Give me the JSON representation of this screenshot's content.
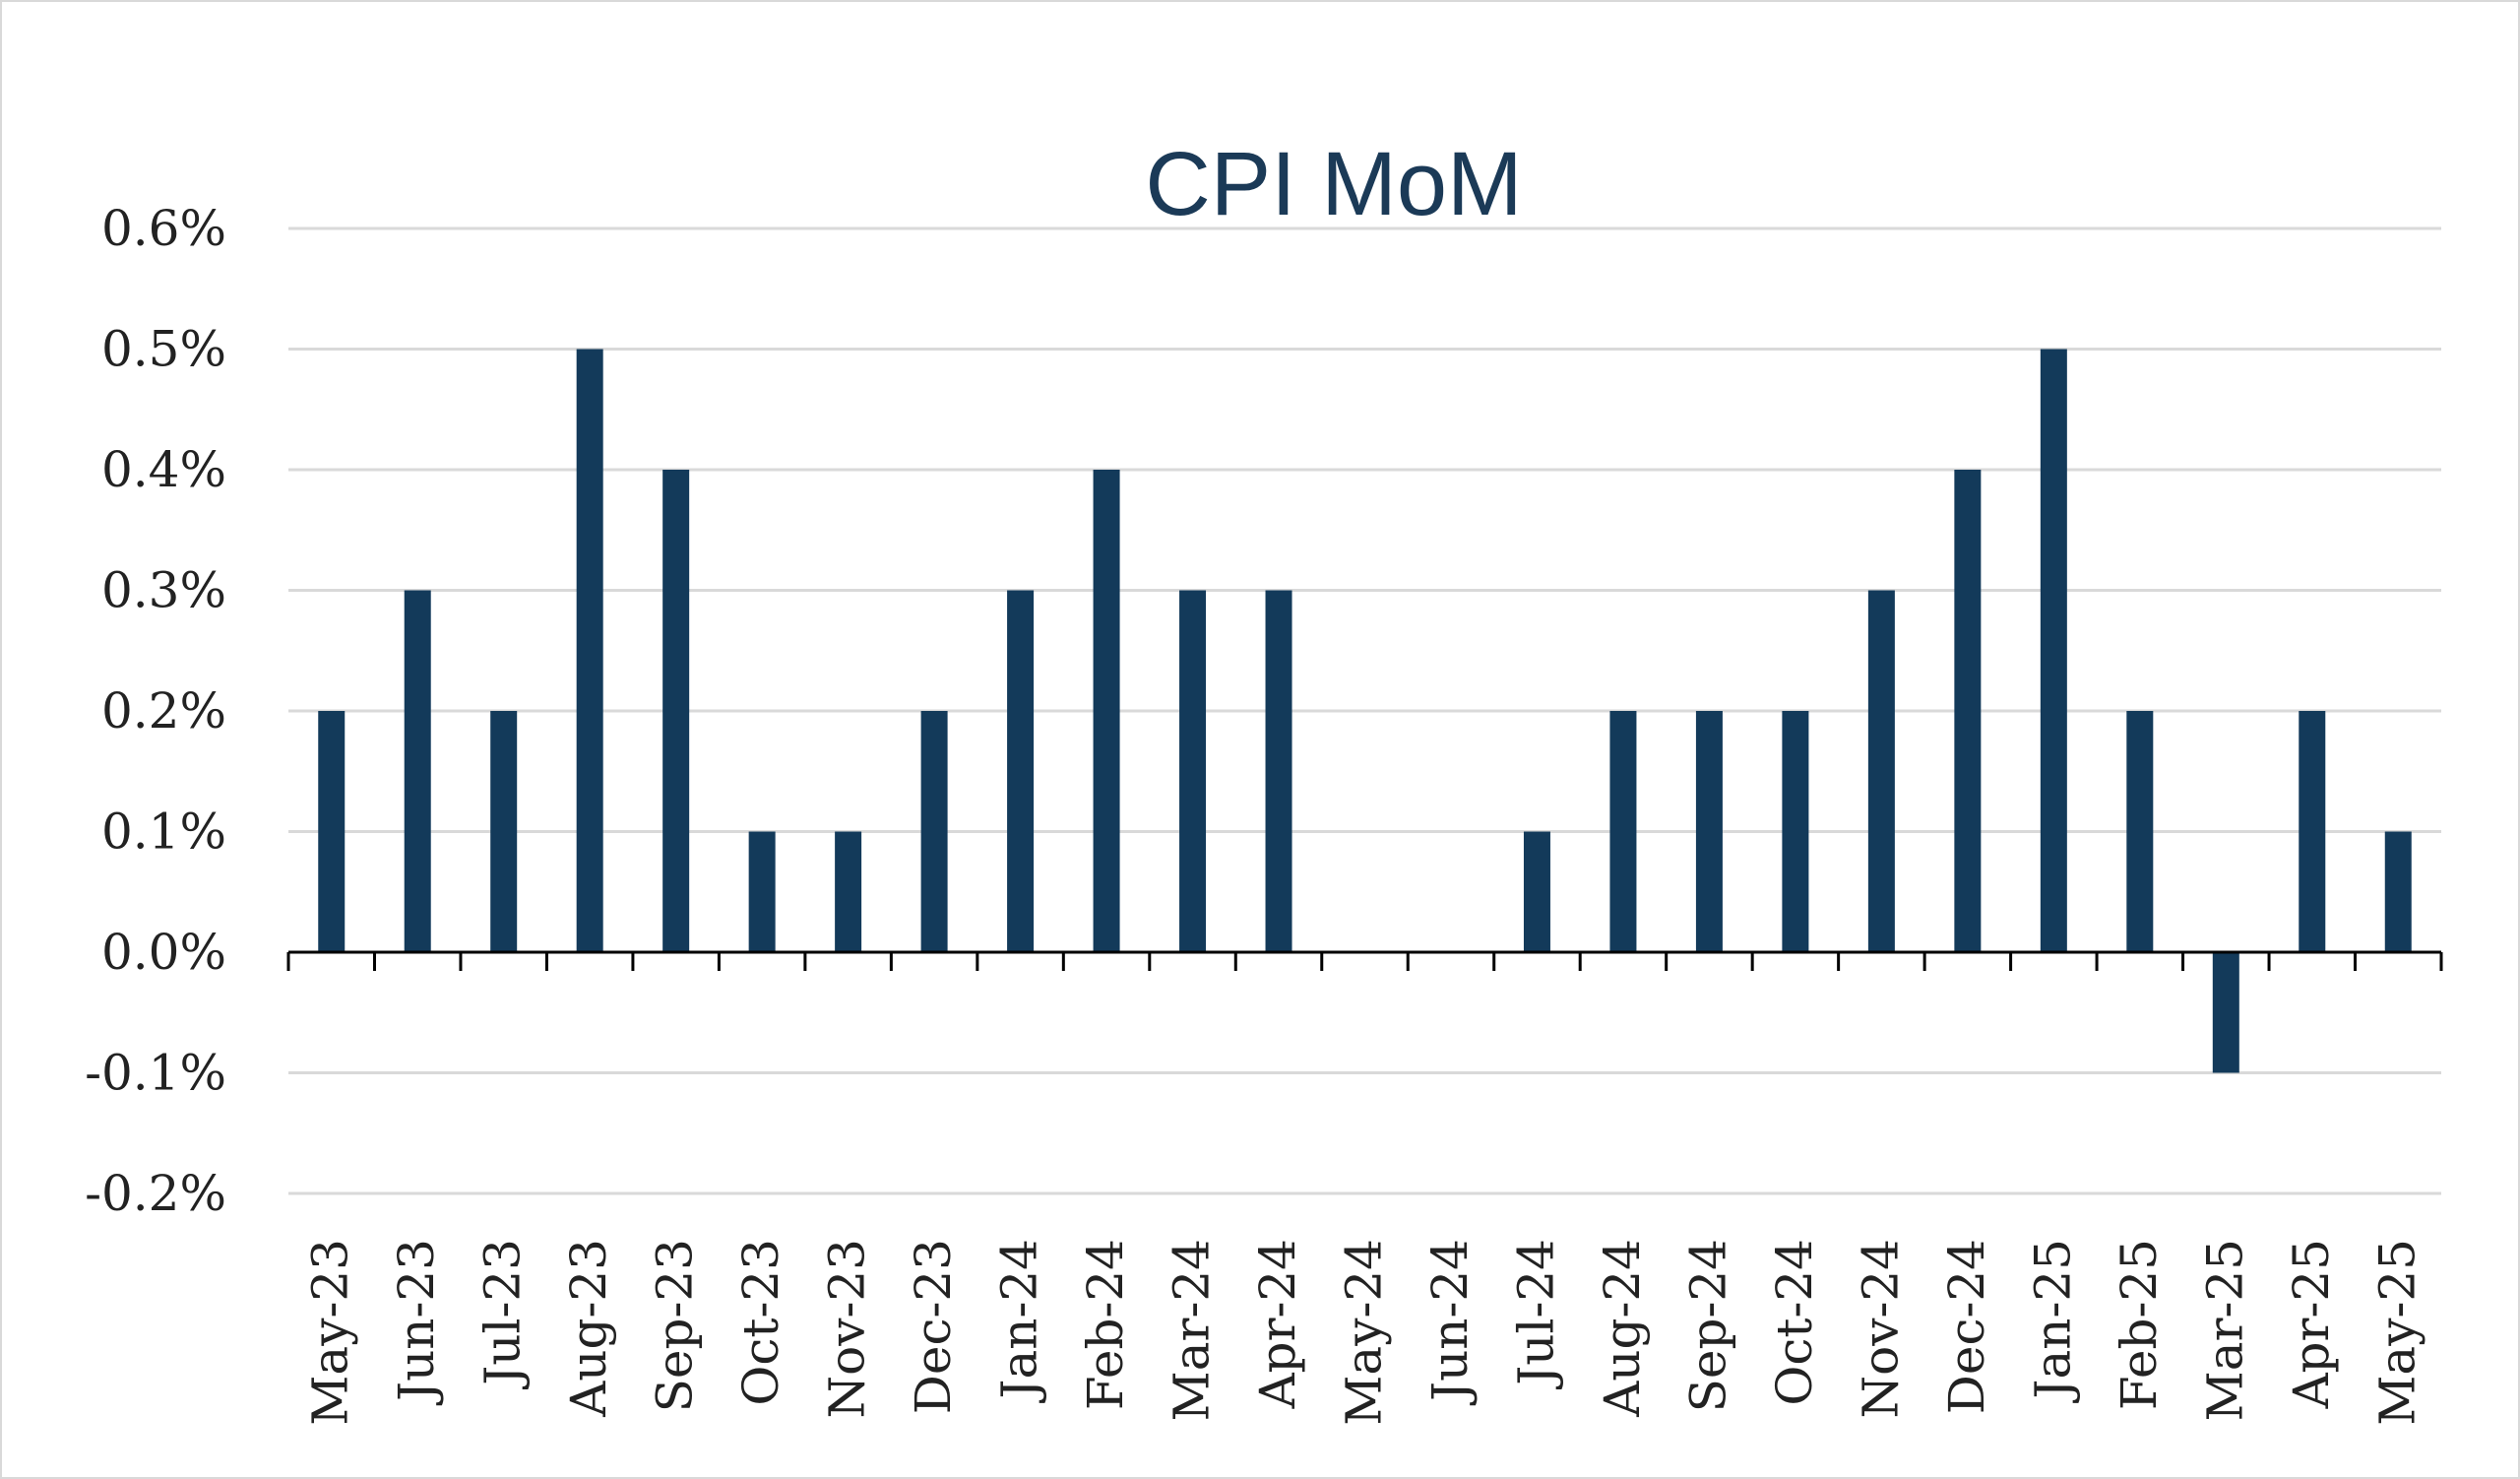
{
  "chart_data": {
    "type": "bar",
    "title": "CPI MoM",
    "xlabel": "",
    "ylabel": "",
    "categories": [
      "May-23",
      "Jun-23",
      "Jul-23",
      "Aug-23",
      "Sep-23",
      "Oct-23",
      "Nov-23",
      "Dec-23",
      "Jan-24",
      "Feb-24",
      "Mar-24",
      "Apr-24",
      "May-24",
      "Jun-24",
      "Jul-24",
      "Aug-24",
      "Sep-24",
      "Oct-24",
      "Nov-24",
      "Dec-24",
      "Jan-25",
      "Feb-25",
      "Mar-25",
      "Apr-25",
      "May-25"
    ],
    "values": [
      0.2,
      0.3,
      0.2,
      0.5,
      0.4,
      0.1,
      0.1,
      0.2,
      0.3,
      0.4,
      0.3,
      0.3,
      0.0,
      0.0,
      0.1,
      0.2,
      0.2,
      0.2,
      0.3,
      0.4,
      0.5,
      0.2,
      -0.1,
      0.2,
      0.1
    ],
    "ylim": [
      -0.2,
      0.6
    ],
    "yticks": [
      "0.6%",
      "0.5%",
      "0.4%",
      "0.3%",
      "0.2%",
      "0.1%",
      "0.0%",
      "-0.1%",
      "-0.2%"
    ],
    "ytick_values": [
      0.6,
      0.5,
      0.4,
      0.3,
      0.2,
      0.1,
      0.0,
      -0.1,
      -0.2
    ],
    "grid": true,
    "legend": "none",
    "bar_color": "#133a5a"
  }
}
